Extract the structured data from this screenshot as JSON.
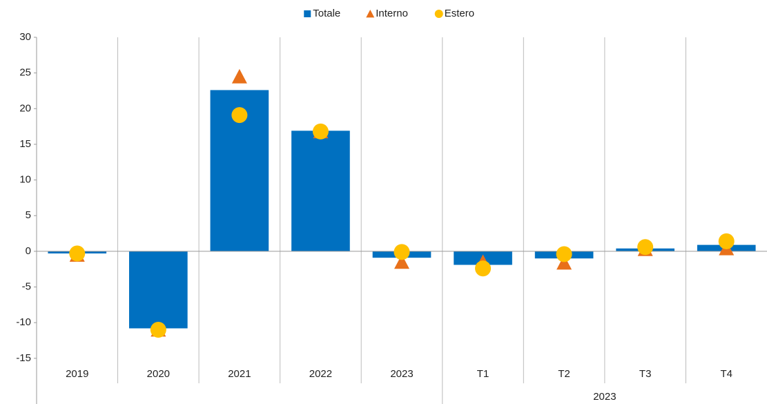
{
  "chart_data": {
    "type": "bar",
    "categories": [
      "2019",
      "2020",
      "2021",
      "2022",
      "2023",
      "T1",
      "T2",
      "T3",
      "T4"
    ],
    "category_groups": [
      null,
      null,
      null,
      null,
      null,
      "2023",
      "2023",
      "2023",
      "2023"
    ],
    "series": [
      {
        "name": "Totale",
        "color": "#0070c0",
        "marker": "bar",
        "values": [
          -0.3,
          -10.8,
          22.6,
          16.9,
          -0.9,
          -1.9,
          -1.0,
          0.4,
          0.9
        ]
      },
      {
        "name": "Interno",
        "color": "#e8701a",
        "marker": "triangle",
        "values": [
          -0.5,
          -11.0,
          24.5,
          16.8,
          -1.5,
          -1.5,
          -1.6,
          0.3,
          0.4
        ]
      },
      {
        "name": "Estero",
        "color": "#ffc000",
        "marker": "circle",
        "values": [
          -0.3,
          -11.0,
          19.1,
          16.8,
          -0.1,
          -2.4,
          -0.4,
          0.6,
          1.4
        ]
      }
    ],
    "ylim": [
      -18.5,
      30
    ],
    "yticks": [
      -15,
      -10,
      -5,
      0,
      5,
      10,
      15,
      20,
      25,
      30
    ],
    "legend": "top"
  }
}
